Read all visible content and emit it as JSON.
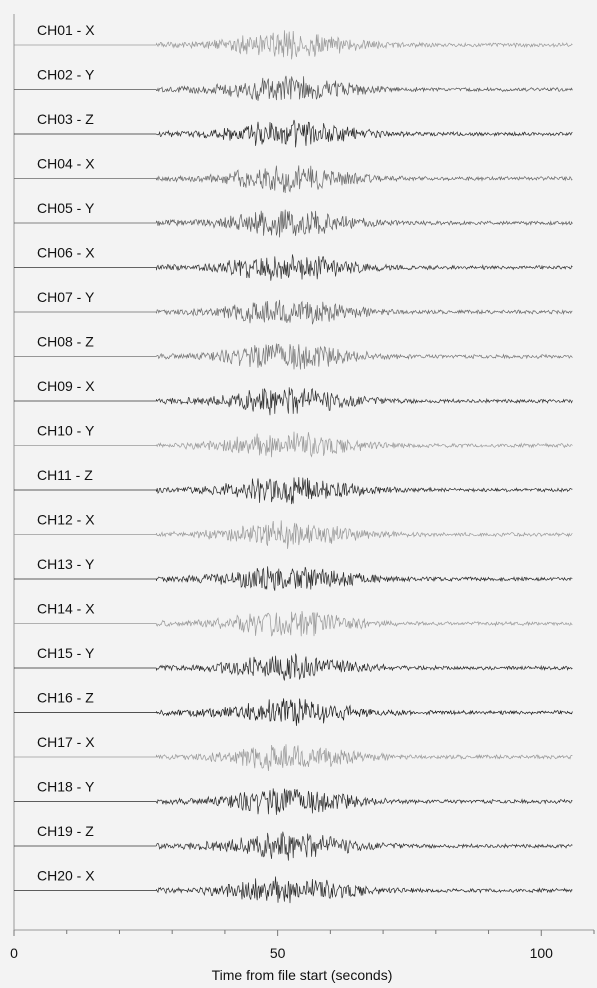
{
  "chart_data": {
    "type": "line",
    "xlabel": "Time from file start (seconds)",
    "x_ticks": [
      0,
      50,
      100
    ],
    "xlim": [
      0,
      110
    ],
    "grid": false,
    "channels": [
      {
        "label": "CH01 - X",
        "tone": "#9a9a9a"
      },
      {
        "label": "CH02 - Y",
        "tone": "#555555"
      },
      {
        "label": "CH03 - Z",
        "tone": "#2a2a2a"
      },
      {
        "label": "CH04 - X",
        "tone": "#6a6a6a"
      },
      {
        "label": "CH05 - Y",
        "tone": "#5a5a5a"
      },
      {
        "label": "CH06 - X",
        "tone": "#333333"
      },
      {
        "label": "CH07 - Y",
        "tone": "#6a6a6a"
      },
      {
        "label": "CH08 - Z",
        "tone": "#777777"
      },
      {
        "label": "CH09 - X",
        "tone": "#333333"
      },
      {
        "label": "CH10 - Y",
        "tone": "#9a9a9a"
      },
      {
        "label": "CH11 - Z",
        "tone": "#2a2a2a"
      },
      {
        "label": "CH12 - X",
        "tone": "#9a9a9a"
      },
      {
        "label": "CH13 - Y",
        "tone": "#2a2a2a"
      },
      {
        "label": "CH14 - X",
        "tone": "#9a9a9a"
      },
      {
        "label": "CH15 - Y",
        "tone": "#2a2a2a"
      },
      {
        "label": "CH16 - Z",
        "tone": "#1a1a1a"
      },
      {
        "label": "CH17 - X",
        "tone": "#9a9a9a"
      },
      {
        "label": "CH18 - Y",
        "tone": "#2a2a2a"
      },
      {
        "label": "CH19 - Z",
        "tone": "#333333"
      },
      {
        "label": "CH20 - X",
        "tone": "#2a2a2a"
      }
    ],
    "trace_start_s": 27,
    "trace_end_s": 106,
    "peak_time_s": 51
  }
}
